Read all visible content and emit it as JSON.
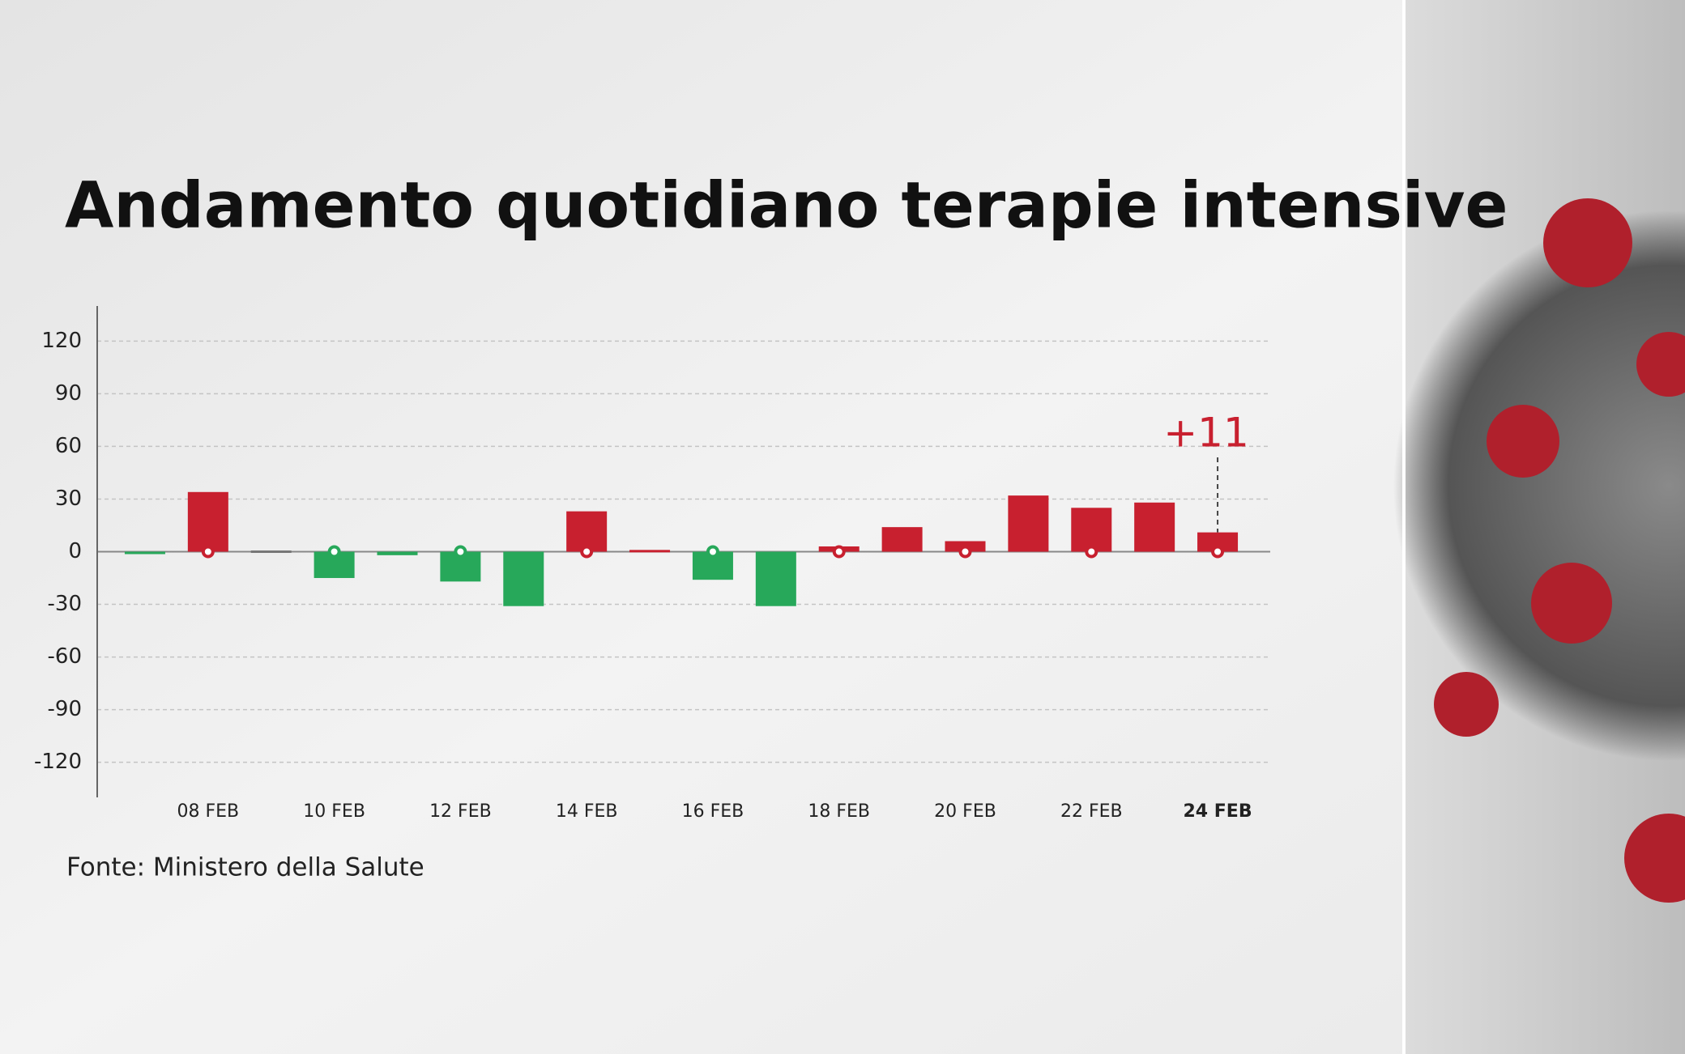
{
  "chart_data": {
    "type": "bar",
    "title": "Andamento quotidiano terapie intensive",
    "source": "Fonte: Ministero della Salute",
    "categories": [
      null,
      "08 FEB",
      null,
      "10 FEB",
      null,
      "12 FEB",
      null,
      "14 FEB",
      null,
      "16 FEB",
      null,
      "18 FEB",
      null,
      "20 FEB",
      null,
      "22 FEB",
      null,
      "24 FEB"
    ],
    "values": [
      -1,
      34,
      0,
      -15,
      -2,
      -17,
      -31,
      23,
      1,
      -16,
      -31,
      3,
      14,
      6,
      32,
      25,
      28,
      11
    ],
    "positive_color": "#c8202f",
    "negative_color": "#27a85a",
    "zero_color": "#777777",
    "ylim": [
      -140,
      140
    ],
    "yticks": [
      -120,
      -90,
      -60,
      -30,
      0,
      30,
      60,
      90,
      120
    ],
    "grid": true,
    "annotation": {
      "category": "24 FEB",
      "text": "+11"
    }
  }
}
